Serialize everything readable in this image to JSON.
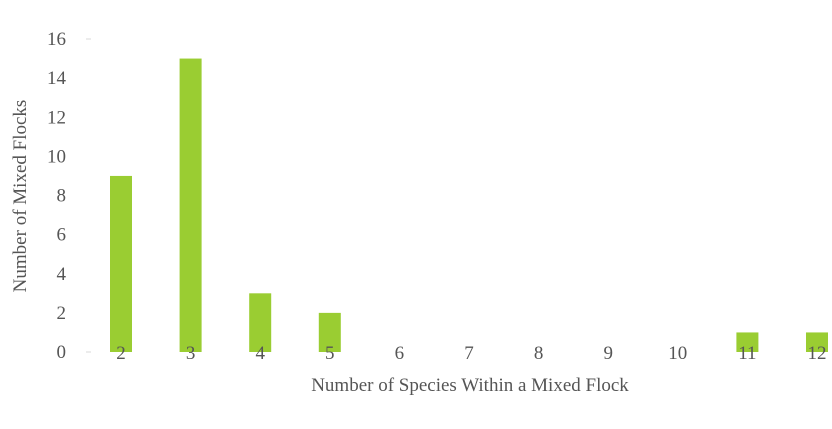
{
  "chart_data": {
    "type": "bar",
    "categories": [
      "2",
      "3",
      "4",
      "5",
      "6",
      "7",
      "8",
      "9",
      "10",
      "11",
      "12"
    ],
    "values": [
      9,
      15,
      3,
      2,
      0,
      0,
      0,
      0,
      0,
      1,
      1
    ],
    "title": "",
    "xlabel": "Number of Species Within a Mixed Flock",
    "ylabel": "Number of Mixed Flocks",
    "ylim": [
      0,
      16
    ],
    "yticks": [
      "0",
      "2",
      "4",
      "6",
      "8",
      "10",
      "12",
      "14",
      "16"
    ],
    "grid": false,
    "legend": "none",
    "bar_color": "#9ACD32",
    "text_color": "#555555"
  }
}
